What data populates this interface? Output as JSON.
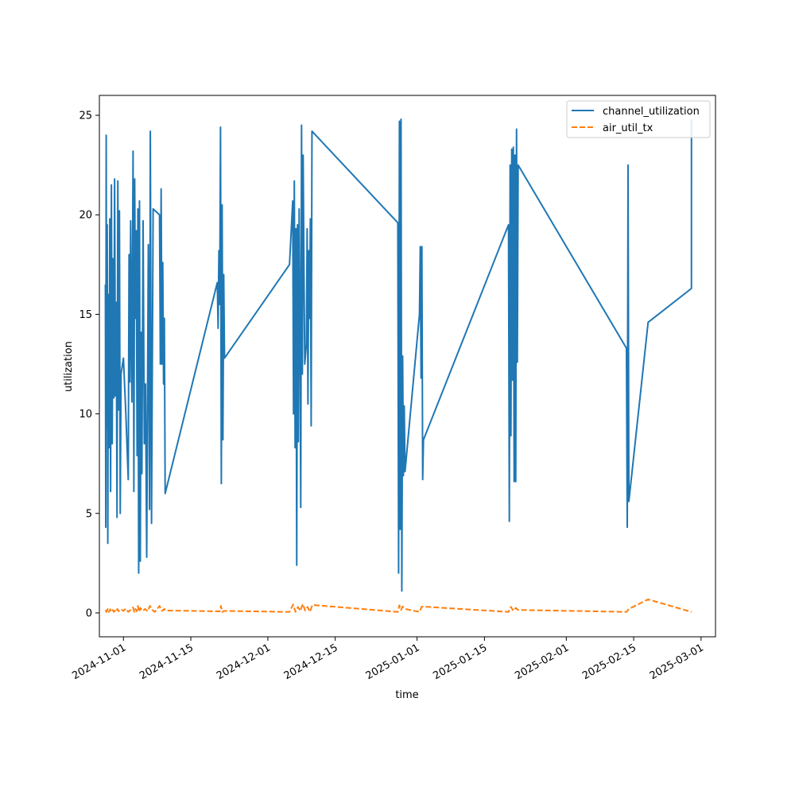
{
  "chart_data": {
    "type": "line",
    "title": "",
    "xlabel": "time",
    "ylabel": "utilization",
    "ylim": [
      -1.2,
      26
    ],
    "xlim": [
      "2024-10-27",
      "2025-03-04"
    ],
    "x_ticks": [
      "2024-11-01",
      "2024-11-15",
      "2024-12-01",
      "2024-12-15",
      "2025-01-01",
      "2025-01-15",
      "2025-02-01",
      "2025-02-15",
      "2025-03-01"
    ],
    "y_ticks": [
      0,
      5,
      10,
      15,
      20,
      25
    ],
    "grid": false,
    "legend_position": "top-right",
    "series": [
      {
        "name": "channel_utilization",
        "color": "#1f77b4",
        "style": "solid",
        "points": [
          [
            "2024-10-28T06:00",
            16.5
          ],
          [
            "2024-10-28T08:00",
            4.3
          ],
          [
            "2024-10-28T10:00",
            24.0
          ],
          [
            "2024-10-28T12:00",
            9.3
          ],
          [
            "2024-10-28T15:00",
            19.5
          ],
          [
            "2024-10-28T18:00",
            3.5
          ],
          [
            "2024-10-28T21:00",
            16.0
          ],
          [
            "2024-10-29T00:00",
            8.3
          ],
          [
            "2024-10-29T04:00",
            19.8
          ],
          [
            "2024-10-29T08:00",
            6.1
          ],
          [
            "2024-10-29T12:00",
            21.5
          ],
          [
            "2024-10-29T16:00",
            8.5
          ],
          [
            "2024-10-29T20:00",
            17.8
          ],
          [
            "2024-10-30T00:00",
            10.8
          ],
          [
            "2024-10-30T04:00",
            21.8
          ],
          [
            "2024-10-30T08:00",
            10.9
          ],
          [
            "2024-10-30T12:00",
            15.6
          ],
          [
            "2024-10-30T16:00",
            4.8
          ],
          [
            "2024-10-30T20:00",
            21.7
          ],
          [
            "2024-10-31T00:00",
            10.2
          ],
          [
            "2024-10-31T04:00",
            20.2
          ],
          [
            "2024-10-31T08:00",
            5.0
          ],
          [
            "2024-10-31T12:00",
            12.0
          ],
          [
            "2024-11-01T00:00",
            12.8
          ],
          [
            "2024-11-01T12:00",
            10.0
          ],
          [
            "2024-11-02T00:00",
            6.7
          ],
          [
            "2024-11-02T04:00",
            18.0
          ],
          [
            "2024-11-02T08:00",
            11.6
          ],
          [
            "2024-11-02T12:00",
            19.7
          ],
          [
            "2024-11-02T18:00",
            10.6
          ],
          [
            "2024-11-03T00:00",
            23.2
          ],
          [
            "2024-11-03T04:00",
            6.1
          ],
          [
            "2024-11-03T08:00",
            21.8
          ],
          [
            "2024-11-03T12:00",
            14.8
          ],
          [
            "2024-11-03T16:00",
            19.2
          ],
          [
            "2024-11-03T20:00",
            7.9
          ],
          [
            "2024-11-04T00:00",
            20.3
          ],
          [
            "2024-11-04T04:00",
            2.0
          ],
          [
            "2024-11-04T08:00",
            20.7
          ],
          [
            "2024-11-04T12:00",
            2.6
          ],
          [
            "2024-11-04T16:00",
            14.1
          ],
          [
            "2024-11-04T20:00",
            7.0
          ],
          [
            "2024-11-05T02:00",
            19.7
          ],
          [
            "2024-11-05T08:00",
            8.5
          ],
          [
            "2024-11-05T14:00",
            11.5
          ],
          [
            "2024-11-05T20:00",
            2.8
          ],
          [
            "2024-11-06T04:00",
            18.5
          ],
          [
            "2024-11-06T10:00",
            5.2
          ],
          [
            "2024-11-06T14:00",
            24.2
          ],
          [
            "2024-11-06T20:00",
            4.5
          ],
          [
            "2024-11-07T04:00",
            20.3
          ],
          [
            "2024-11-08T12:00",
            20.0
          ],
          [
            "2024-11-08T16:00",
            12.5
          ],
          [
            "2024-11-08T20:00",
            21.3
          ],
          [
            "2024-11-09T00:00",
            12.5
          ],
          [
            "2024-11-09T04:00",
            17.6
          ],
          [
            "2024-11-09T08:00",
            11.5
          ],
          [
            "2024-11-09T12:00",
            14.8
          ],
          [
            "2024-11-09T16:00",
            6.0
          ],
          [
            "2024-11-20T12:00",
            16.6
          ],
          [
            "2024-11-20T16:00",
            14.3
          ],
          [
            "2024-11-20T20:00",
            18.2
          ],
          [
            "2024-11-21T00:00",
            15.5
          ],
          [
            "2024-11-21T04:00",
            24.4
          ],
          [
            "2024-11-21T08:00",
            6.5
          ],
          [
            "2024-11-21T12:00",
            20.5
          ],
          [
            "2024-11-21T16:00",
            8.7
          ],
          [
            "2024-11-21T20:00",
            17.0
          ],
          [
            "2024-11-22T00:00",
            12.8
          ],
          [
            "2024-12-05T12:00",
            17.5
          ],
          [
            "2024-12-06T04:00",
            20.7
          ],
          [
            "2024-12-06T08:00",
            10.0
          ],
          [
            "2024-12-06T12:00",
            21.7
          ],
          [
            "2024-12-06T16:00",
            8.3
          ],
          [
            "2024-12-06T20:00",
            19.3
          ],
          [
            "2024-12-07T00:00",
            2.4
          ],
          [
            "2024-12-07T04:00",
            19.5
          ],
          [
            "2024-12-07T08:00",
            8.6
          ],
          [
            "2024-12-07T12:00",
            20.3
          ],
          [
            "2024-12-07T16:00",
            14.8
          ],
          [
            "2024-12-07T20:00",
            5.3
          ],
          [
            "2024-12-08T00:00",
            24.5
          ],
          [
            "2024-12-08T04:00",
            12.0
          ],
          [
            "2024-12-08T08:00",
            23.0
          ],
          [
            "2024-12-08T12:00",
            17.4
          ],
          [
            "2024-12-08T16:00",
            12.5
          ],
          [
            "2024-12-09T00:00",
            13.5
          ],
          [
            "2024-12-09T04:00",
            19.3
          ],
          [
            "2024-12-09T08:00",
            10.5
          ],
          [
            "2024-12-09T12:00",
            18.2
          ],
          [
            "2024-12-09T16:00",
            14.8
          ],
          [
            "2024-12-09T20:00",
            19.8
          ],
          [
            "2024-12-10T00:00",
            9.4
          ],
          [
            "2024-12-10T04:00",
            24.2
          ],
          [
            "2024-12-28T00:00",
            19.6
          ],
          [
            "2024-12-28T04:00",
            2.0
          ],
          [
            "2024-12-28T08:00",
            24.7
          ],
          [
            "2024-12-28T12:00",
            4.2
          ],
          [
            "2024-12-28T16:00",
            24.8
          ],
          [
            "2024-12-28T20:00",
            1.1
          ],
          [
            "2024-12-29T00:00",
            12.9
          ],
          [
            "2024-12-29T04:00",
            6.9
          ],
          [
            "2024-12-29T08:00",
            10.4
          ],
          [
            "2024-12-29T12:00",
            7.1
          ],
          [
            "2025-01-01T12:00",
            15.0
          ],
          [
            "2025-01-01T16:00",
            18.4
          ],
          [
            "2025-01-01T20:00",
            11.8
          ],
          [
            "2025-01-02T00:00",
            18.4
          ],
          [
            "2025-01-02T04:00",
            6.7
          ],
          [
            "2025-01-02T08:00",
            8.7
          ],
          [
            "2025-01-20T00:00",
            19.5
          ],
          [
            "2025-01-20T04:00",
            4.6
          ],
          [
            "2025-01-20T08:00",
            22.5
          ],
          [
            "2025-01-20T12:00",
            8.9
          ],
          [
            "2025-01-20T16:00",
            23.3
          ],
          [
            "2025-01-20T20:00",
            11.7
          ],
          [
            "2025-01-21T00:00",
            23.4
          ],
          [
            "2025-01-21T04:00",
            6.6
          ],
          [
            "2025-01-21T08:00",
            23.0
          ],
          [
            "2025-01-21T12:00",
            6.6
          ],
          [
            "2025-01-21T16:00",
            24.3
          ],
          [
            "2025-01-21T20:00",
            12.6
          ],
          [
            "2025-01-22T00:00",
            22.5
          ],
          [
            "2025-02-13T12:00",
            13.3
          ],
          [
            "2025-02-13T16:00",
            4.3
          ],
          [
            "2025-02-13T20:00",
            22.5
          ],
          [
            "2025-02-14T00:00",
            5.6
          ],
          [
            "2025-02-18T00:00",
            14.6
          ],
          [
            "2025-02-27T00:00",
            16.3
          ],
          [
            "2025-02-27T00:10",
            24.8
          ]
        ]
      },
      {
        "name": "air_util_tx",
        "color": "#ff7f0e",
        "style": "dashed",
        "points": [
          [
            "2024-10-28T06:00",
            0.15
          ],
          [
            "2024-10-28T12:00",
            0.05
          ],
          [
            "2024-10-28T18:00",
            0.2
          ],
          [
            "2024-10-29T00:00",
            0.05
          ],
          [
            "2024-10-29T06:00",
            0.18
          ],
          [
            "2024-10-29T12:00",
            0.06
          ],
          [
            "2024-10-29T18:00",
            0.15
          ],
          [
            "2024-10-30T00:00",
            0.05
          ],
          [
            "2024-10-30T06:00",
            0.12
          ],
          [
            "2024-10-30T12:00",
            0.05
          ],
          [
            "2024-10-30T18:00",
            0.2
          ],
          [
            "2024-10-31T00:00",
            0.08
          ],
          [
            "2024-10-31T12:00",
            0.18
          ],
          [
            "2024-11-01T00:00",
            0.1
          ],
          [
            "2024-11-01T12:00",
            0.22
          ],
          [
            "2024-11-02T00:00",
            0.05
          ],
          [
            "2024-11-02T12:00",
            0.15
          ],
          [
            "2024-11-03T00:00",
            0.28
          ],
          [
            "2024-11-03T06:00",
            0.05
          ],
          [
            "2024-11-03T12:00",
            0.2
          ],
          [
            "2024-11-03T18:00",
            0.08
          ],
          [
            "2024-11-04T00:00",
            0.35
          ],
          [
            "2024-11-04T06:00",
            0.05
          ],
          [
            "2024-11-04T12:00",
            0.25
          ],
          [
            "2024-11-05T00:00",
            0.1
          ],
          [
            "2024-11-05T12:00",
            0.2
          ],
          [
            "2024-11-06T00:00",
            0.08
          ],
          [
            "2024-11-06T12:00",
            0.35
          ],
          [
            "2024-11-07T00:00",
            0.15
          ],
          [
            "2024-11-07T12:00",
            0.05
          ],
          [
            "2024-11-08T00:00",
            0.2
          ],
          [
            "2024-11-08T12:00",
            0.35
          ],
          [
            "2024-11-09T00:00",
            0.1
          ],
          [
            "2024-11-09T12:00",
            0.2
          ],
          [
            "2024-11-09T16:00",
            0.12
          ],
          [
            "2024-11-21T00:00",
            0.08
          ],
          [
            "2024-11-21T06:00",
            0.35
          ],
          [
            "2024-11-21T12:00",
            0.05
          ],
          [
            "2024-11-22T00:00",
            0.1
          ],
          [
            "2024-12-05T12:00",
            0.05
          ],
          [
            "2024-12-06T06:00",
            0.42
          ],
          [
            "2024-12-06T18:00",
            0.05
          ],
          [
            "2024-12-07T06:00",
            0.3
          ],
          [
            "2024-12-07T18:00",
            0.1
          ],
          [
            "2024-12-08T06:00",
            0.45
          ],
          [
            "2024-12-08T18:00",
            0.12
          ],
          [
            "2024-12-09T06:00",
            0.3
          ],
          [
            "2024-12-09T18:00",
            0.05
          ],
          [
            "2024-12-10T06:00",
            0.4
          ],
          [
            "2024-12-28T00:00",
            0.05
          ],
          [
            "2024-12-28T08:00",
            0.38
          ],
          [
            "2024-12-28T16:00",
            0.15
          ],
          [
            "2024-12-29T00:00",
            0.32
          ],
          [
            "2024-12-29T12:00",
            0.2
          ],
          [
            "2025-01-01T12:00",
            0.05
          ],
          [
            "2025-01-02T00:00",
            0.32
          ],
          [
            "2025-01-20T00:00",
            0.05
          ],
          [
            "2025-01-20T12:00",
            0.3
          ],
          [
            "2025-01-21T00:00",
            0.1
          ],
          [
            "2025-01-21T12:00",
            0.25
          ],
          [
            "2025-01-22T00:00",
            0.15
          ],
          [
            "2025-02-13T12:00",
            0.05
          ],
          [
            "2025-02-14T00:00",
            0.2
          ],
          [
            "2025-02-18T00:00",
            0.68
          ],
          [
            "2025-02-27T00:00",
            0.05
          ]
        ]
      }
    ]
  }
}
